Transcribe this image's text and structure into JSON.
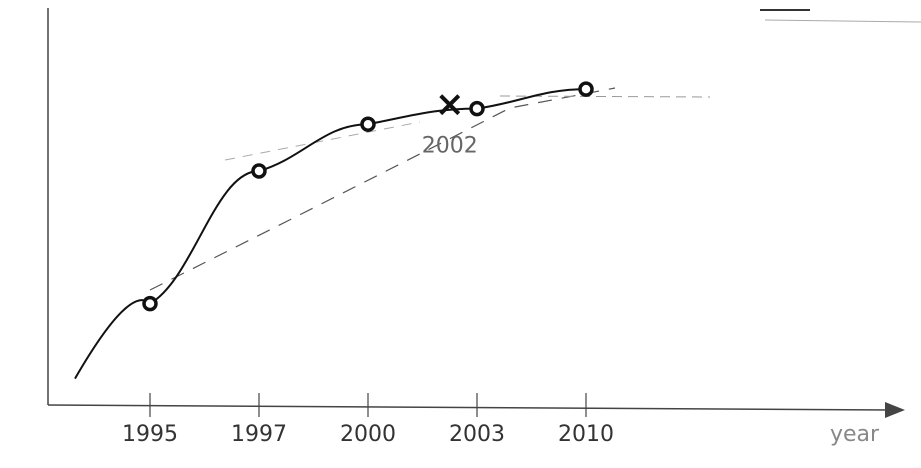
{
  "chart_data": {
    "type": "line",
    "categories": [
      "1995",
      "1997",
      "2000",
      "2003",
      "2010"
    ],
    "x_label": "year",
    "series": [
      {
        "color": "#111",
        "values": [
          26,
          60,
          72,
          76,
          81
        ]
      }
    ],
    "annotation": {
      "label": "2002",
      "value": 77
    },
    "ylim": [
      0,
      100
    ]
  }
}
